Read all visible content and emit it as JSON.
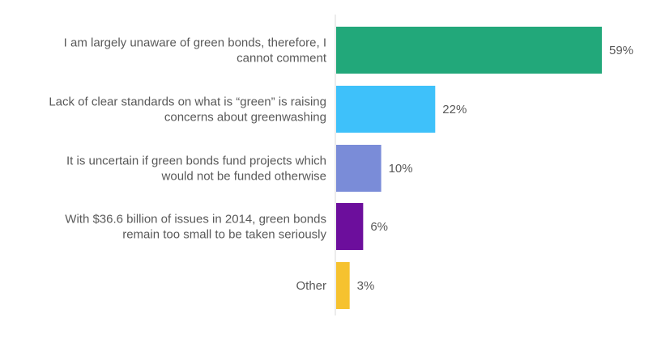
{
  "chart_data": {
    "type": "bar",
    "orientation": "horizontal",
    "categories": [
      [
        "I am largely unaware of green bonds, therefore, I",
        "cannot comment"
      ],
      [
        "Lack of clear standards on what is “green” is raising",
        "concerns about greenwashing"
      ],
      [
        "It is uncertain if green bonds fund projects which",
        "would not be funded otherwise"
      ],
      [
        "With $36.6 billion of issues in 2014, green bonds",
        "remain too small to be taken seriously"
      ],
      [
        "Other"
      ]
    ],
    "values": [
      59,
      22,
      10,
      6,
      3
    ],
    "value_labels": [
      "59%",
      "22%",
      "10%",
      "6%",
      "3%"
    ],
    "colors": [
      "#22A87A",
      "#3EC1FA",
      "#7A8CD8",
      "#6C0E9C",
      "#F6C22F"
    ],
    "xlim": [
      0,
      70
    ],
    "grid": false,
    "legend": "none",
    "title": "",
    "xlabel": "",
    "ylabel": ""
  },
  "colors": {
    "axis": "#D9D9D9",
    "text": "#595959"
  }
}
